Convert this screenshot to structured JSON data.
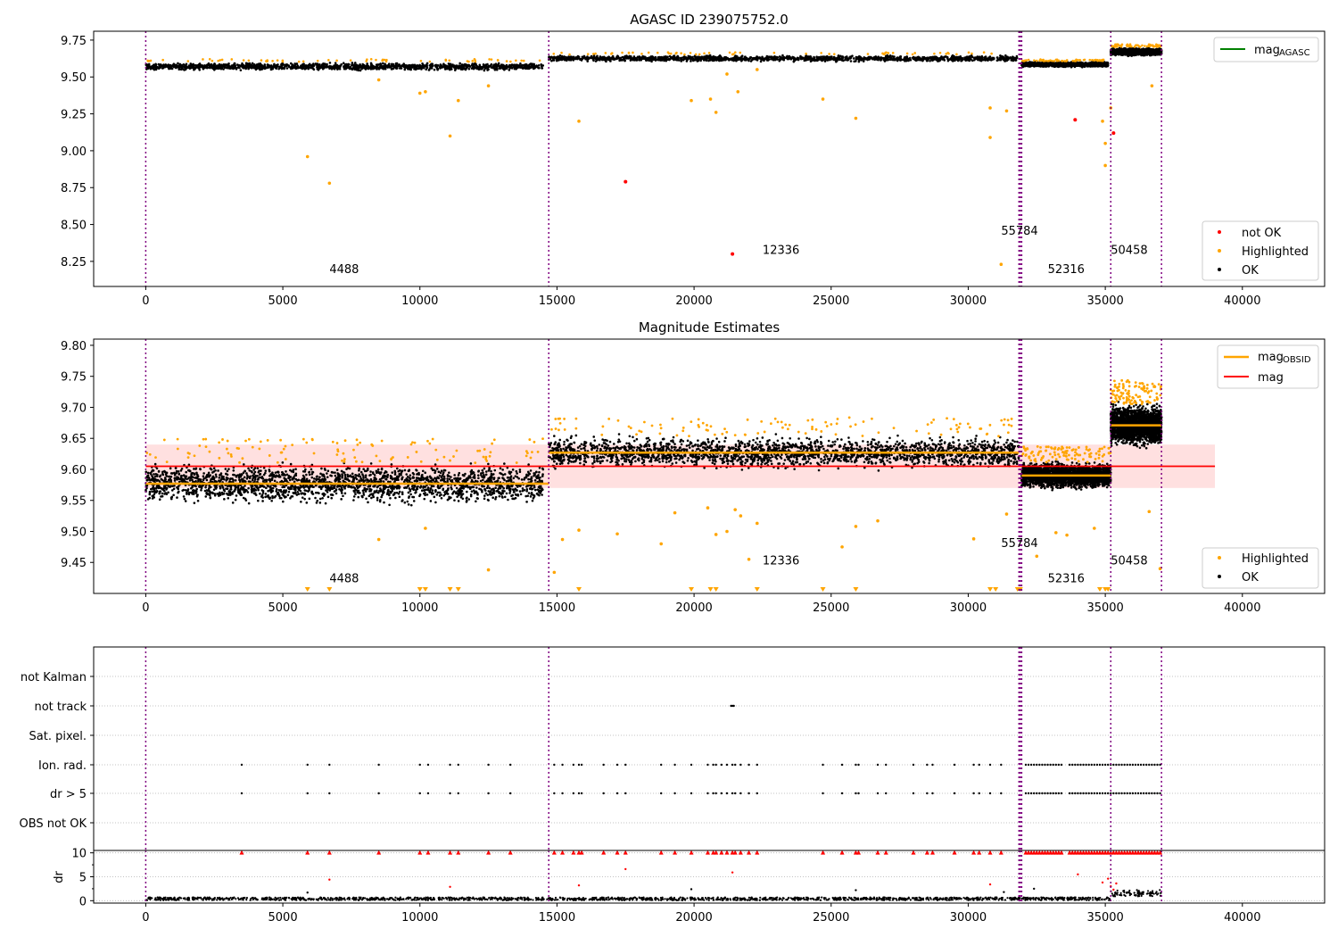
{
  "chart_data": [
    {
      "type": "scatter",
      "title": "AGASC ID 239075752.0",
      "xlim": [
        -1900,
        43000
      ],
      "ylim": [
        8.08,
        9.81
      ],
      "xticks": [
        0,
        5000,
        10000,
        15000,
        20000,
        25000,
        30000,
        35000,
        40000
      ],
      "yticks": [
        8.25,
        8.5,
        8.75,
        9.0,
        9.25,
        9.5,
        9.75
      ],
      "obsid_boundaries": [
        0,
        14700,
        31850,
        31900,
        31950,
        35200,
        37050
      ],
      "annotations": [
        {
          "text": "4488",
          "x": 6700,
          "y": 8.17
        },
        {
          "text": "12336",
          "x": 22500,
          "y": 8.3
        },
        {
          "text": "55784",
          "x": 31200,
          "y": 8.43
        },
        {
          "text": "52316",
          "x": 32900,
          "y": 8.17
        },
        {
          "text": "50458",
          "x": 35200,
          "y": 8.3
        }
      ],
      "segments": [
        {
          "x0": 0,
          "x1": 14500,
          "center": 9.57,
          "spread": 0.03
        },
        {
          "x0": 14700,
          "x1": 31800,
          "center": 9.625,
          "spread": 0.025
        },
        {
          "x0": 31950,
          "x1": 35100,
          "center": 9.585,
          "spread": 0.02
        },
        {
          "x0": 35200,
          "x1": 37050,
          "center": 9.67,
          "spread": 0.03
        }
      ],
      "highlighted_points": [
        [
          5900,
          8.96
        ],
        [
          6700,
          8.78
        ],
        [
          8500,
          9.48
        ],
        [
          10000,
          9.39
        ],
        [
          10200,
          9.4
        ],
        [
          11100,
          9.1
        ],
        [
          11400,
          9.34
        ],
        [
          12500,
          9.44
        ],
        [
          15800,
          9.2
        ],
        [
          19900,
          9.34
        ],
        [
          20600,
          9.35
        ],
        [
          20800,
          9.26
        ],
        [
          21200,
          9.52
        ],
        [
          21600,
          9.4
        ],
        [
          22300,
          9.55
        ],
        [
          24700,
          9.35
        ],
        [
          25900,
          9.22
        ],
        [
          30800,
          9.29
        ],
        [
          30800,
          9.09
        ],
        [
          31200,
          8.23
        ],
        [
          31400,
          9.27
        ],
        [
          34900,
          9.2
        ],
        [
          35000,
          9.05
        ],
        [
          35000,
          8.9
        ],
        [
          35200,
          9.29
        ],
        [
          36700,
          9.44
        ]
      ],
      "notok_points": [
        [
          17500,
          8.79
        ],
        [
          21400,
          8.3
        ],
        [
          33900,
          9.21
        ],
        [
          35300,
          9.12
        ]
      ],
      "legend": [
        {
          "label": "mag",
          "sub": "AGASC",
          "color": "#008000",
          "kind": "line"
        },
        {
          "label": "not OK",
          "color": "#ff0000",
          "kind": "dot"
        },
        {
          "label": "Highlighted",
          "color": "#ffa500",
          "kind": "dot"
        },
        {
          "label": "OK",
          "color": "#000000",
          "kind": "dot"
        }
      ]
    },
    {
      "type": "scatter",
      "title": "Magnitude Estimates",
      "xlim": [
        -1900,
        43000
      ],
      "ylim": [
        9.4,
        9.81
      ],
      "xticks": [
        0,
        5000,
        10000,
        15000,
        20000,
        25000,
        30000,
        35000,
        40000
      ],
      "yticks": [
        9.45,
        9.5,
        9.55,
        9.6,
        9.65,
        9.7,
        9.75,
        9.8
      ],
      "mag": 9.605,
      "mag_band": [
        9.57,
        9.64
      ],
      "mag_band_x": [
        0,
        39000
      ],
      "obsid_means": [
        {
          "x0": 0,
          "x1": 14700,
          "mag": 9.577
        },
        {
          "x0": 14700,
          "x1": 31850,
          "mag": 9.627
        },
        {
          "x0": 31950,
          "x1": 35200,
          "mag": 9.59
        },
        {
          "x0": 35200,
          "x1": 37050,
          "mag": 9.671
        }
      ],
      "annotations": [
        {
          "text": "4488",
          "x": 6700,
          "y": 9.418
        },
        {
          "text": "12336",
          "x": 22500,
          "y": 9.447
        },
        {
          "text": "55784",
          "x": 31200,
          "y": 9.475
        },
        {
          "text": "52316",
          "x": 32900,
          "y": 9.418
        },
        {
          "text": "50458",
          "x": 35200,
          "y": 9.447
        }
      ],
      "highlighted_points": [
        [
          8500,
          9.487
        ],
        [
          10200,
          9.505
        ],
        [
          12500,
          9.438
        ],
        [
          14900,
          9.434
        ],
        [
          15200,
          9.487
        ],
        [
          15800,
          9.502
        ],
        [
          17200,
          9.496
        ],
        [
          18800,
          9.48
        ],
        [
          19300,
          9.53
        ],
        [
          20500,
          9.538
        ],
        [
          20800,
          9.495
        ],
        [
          21200,
          9.5
        ],
        [
          21500,
          9.535
        ],
        [
          21700,
          9.525
        ],
        [
          22000,
          9.455
        ],
        [
          22300,
          9.513
        ],
        [
          25400,
          9.475
        ],
        [
          25900,
          9.508
        ],
        [
          26700,
          9.517
        ],
        [
          30200,
          9.488
        ],
        [
          31400,
          9.528
        ],
        [
          32500,
          9.46
        ],
        [
          33200,
          9.498
        ],
        [
          33600,
          9.494
        ],
        [
          34600,
          9.505
        ],
        [
          36600,
          9.532
        ],
        [
          37000,
          9.44
        ]
      ],
      "clipped_low_x": [
        5900,
        6700,
        10000,
        10200,
        11100,
        11400,
        15800,
        19900,
        20600,
        20800,
        22300,
        24700,
        25900,
        30800,
        31000,
        31800,
        31900,
        34800,
        35000,
        35100
      ],
      "legend": [
        {
          "label": "mag",
          "sub": "OBSID",
          "color": "#ffa500",
          "kind": "line"
        },
        {
          "label": "mag",
          "color": "#ff0000",
          "kind": "line"
        },
        {
          "label": "Highlighted",
          "color": "#ffa500",
          "kind": "dot"
        },
        {
          "label": "OK",
          "color": "#000000",
          "kind": "dot"
        }
      ]
    },
    {
      "type": "scatter",
      "title": "",
      "xlim": [
        -1900,
        43000
      ],
      "categories": [
        "not Kalman",
        "not track",
        "Sat. pixel.",
        "Ion. rad.",
        "dr > 5",
        "OBS not OK"
      ],
      "flag_points": {
        "not track": [
          21350,
          21400,
          21450
        ],
        "Ion. rad.": [
          3500,
          5900,
          6700,
          8500,
          10000,
          10300,
          11100,
          11400,
          12500,
          13300,
          14900,
          15200,
          15600,
          15800,
          15900,
          16700,
          17200,
          17500,
          18800,
          19300,
          19900,
          20500,
          20700,
          20800,
          21000,
          21200,
          21400,
          21500,
          21700,
          22000,
          22300,
          24700,
          25400,
          25900,
          26000,
          26700,
          27000,
          28000,
          28500,
          28700,
          29500,
          30200,
          30400,
          30800,
          31200,
          32100,
          32200,
          32300,
          32400,
          32500,
          32600,
          32700,
          32800,
          32900,
          33000,
          33100,
          33200,
          33300,
          33400,
          33700,
          33800,
          33900,
          34000,
          34100,
          34200,
          34300,
          34400,
          34500,
          34600,
          34700,
          34800,
          34900,
          35000,
          35100,
          35200,
          35300,
          35400,
          35500,
          35600,
          35700,
          35800,
          35900,
          36000,
          36100,
          36200,
          36300,
          36400,
          36500,
          36600,
          36700,
          36800,
          36900,
          37000
        ],
        "dr > 5": [
          3500,
          5900,
          6700,
          8500,
          10000,
          10300,
          11100,
          11400,
          12500,
          13300,
          14900,
          15200,
          15600,
          15800,
          15900,
          16700,
          17200,
          17500,
          18800,
          19300,
          19900,
          20500,
          20700,
          20800,
          21000,
          21200,
          21400,
          21500,
          21700,
          22000,
          22300,
          24700,
          25400,
          25900,
          26000,
          26700,
          27000,
          28000,
          28500,
          28700,
          29500,
          30200,
          30400,
          30800,
          31200,
          32100,
          32200,
          32300,
          32400,
          32500,
          32600,
          32700,
          32800,
          32900,
          33000,
          33100,
          33200,
          33300,
          33400,
          33700,
          33800,
          33900,
          34000,
          34100,
          34200,
          34300,
          34400,
          34500,
          34600,
          34700,
          34800,
          34900,
          35000,
          35100,
          35200,
          35300,
          35400,
          35500,
          35600,
          35700,
          35800,
          35900,
          36000,
          36100,
          36200,
          36300,
          36400,
          36500,
          36600,
          36700,
          36800,
          36900,
          37000
        ]
      }
    },
    {
      "type": "scatter",
      "title": "",
      "ylabel": "dr",
      "xlim": [
        -1900,
        43000
      ],
      "ylim": [
        -0.5,
        10.5
      ],
      "xticks": [
        0,
        5000,
        10000,
        15000,
        20000,
        25000,
        30000,
        35000,
        40000
      ],
      "yticks": [
        0,
        5,
        10
      ],
      "baseline": [
        0.1,
        0.7
      ],
      "capped_points_x": [
        3500,
        5900,
        6700,
        8500,
        10000,
        10300,
        11100,
        11400,
        12500,
        13300,
        14900,
        15200,
        15600,
        15800,
        15900,
        16700,
        17200,
        17500,
        18800,
        19300,
        19900,
        20500,
        20700,
        20800,
        21000,
        21200,
        21400,
        21500,
        21700,
        22000,
        22300,
        24700,
        25400,
        25900,
        26000,
        26700,
        27000,
        28000,
        28500,
        28700,
        29500,
        30200,
        30400,
        30800,
        31200,
        32100,
        32200,
        32300,
        32400,
        32500,
        32600,
        32700,
        32800,
        32900,
        33000,
        33100,
        33200,
        33300,
        33400,
        33700,
        33800,
        33900,
        34000,
        34100,
        34200,
        34300,
        34400,
        34500,
        34600,
        34700,
        34800,
        34900,
        35000,
        35100,
        35200,
        35300,
        35400,
        35500,
        35600,
        35700,
        35800,
        35900,
        36000,
        36100,
        36200,
        36300,
        36400,
        36500,
        36600,
        36700,
        36800,
        36900,
        37000
      ],
      "mid_points": [
        [
          6700,
          4.4
        ],
        [
          11100,
          2.9
        ],
        [
          15800,
          3.2
        ],
        [
          17500,
          6.6
        ],
        [
          21400,
          5.9
        ],
        [
          30800,
          3.4
        ],
        [
          34000,
          5.5
        ],
        [
          34900,
          3.8
        ],
        [
          35100,
          4.6
        ],
        [
          35200,
          3.0
        ],
        [
          35300,
          2.3
        ],
        [
          35400,
          3.6
        ]
      ],
      "black_mid_points": [
        [
          5900,
          1.7
        ],
        [
          19900,
          2.4
        ],
        [
          25900,
          2.2
        ],
        [
          32400,
          2.5
        ],
        [
          31300,
          1.8
        ]
      ]
    }
  ]
}
